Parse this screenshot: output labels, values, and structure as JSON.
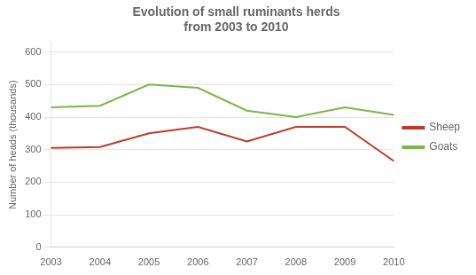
{
  "chart_data": {
    "type": "line",
    "title": "Evolution of small ruminants herds\nfrom 2003 to 2010",
    "categories": [
      "2003",
      "2004",
      "2005",
      "2006",
      "2007",
      "2008",
      "2009",
      "2010"
    ],
    "series": [
      {
        "name": "Sheep",
        "color": "#c0392b",
        "values": [
          305,
          308,
          350,
          370,
          325,
          370,
          370,
          265
        ]
      },
      {
        "name": "Goats",
        "color": "#7ab648",
        "values": [
          430,
          435,
          500,
          490,
          420,
          400,
          430,
          407
        ]
      }
    ],
    "ylabel": "Number of heads (thousands)",
    "ylim": [
      0,
      630
    ],
    "yticks": [
      0,
      100,
      200,
      300,
      400,
      500,
      600
    ],
    "grid": "y",
    "legend": "right"
  }
}
